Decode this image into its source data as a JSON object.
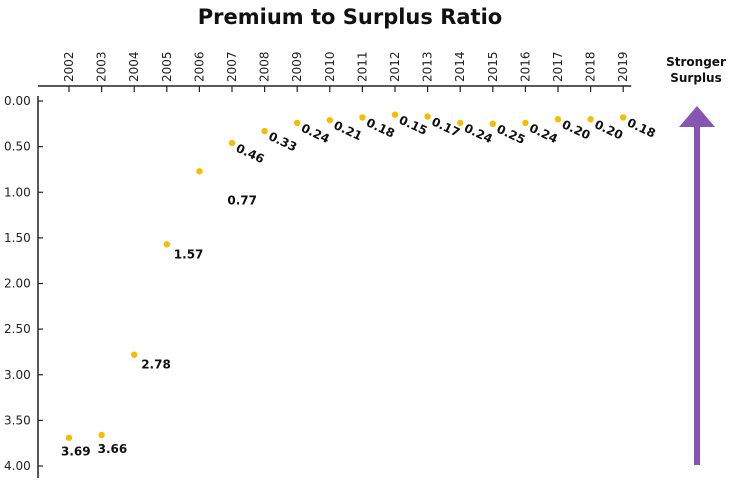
{
  "chart_data": {
    "type": "scatter",
    "title": "Premium to Surplus Ratio",
    "x": [
      "2002",
      "2003",
      "2004",
      "2005",
      "2006",
      "2007",
      "2008",
      "2009",
      "2010",
      "2011",
      "2012",
      "2013",
      "2014",
      "2015",
      "2016",
      "2017",
      "2018",
      "2019"
    ],
    "values": [
      3.69,
      3.66,
      2.78,
      1.57,
      0.77,
      0.46,
      0.33,
      0.24,
      0.21,
      0.18,
      0.15,
      0.17,
      0.24,
      0.25,
      0.24,
      0.2,
      0.2,
      0.18
    ],
    "value_labels": [
      "3.69",
      "3.66",
      "2.78",
      "1.57",
      "0.77",
      "0.46",
      "0.33",
      "0.24",
      "0.21",
      "0.18",
      "0.15",
      "0.17",
      "0.24",
      "0.25",
      "0.24",
      "0.20",
      "0.20",
      "0.18"
    ],
    "y_ticks": [
      "0.00",
      "0.50",
      "1.00",
      "1.50",
      "2.00",
      "2.50",
      "3.00",
      "3.50",
      "4.00"
    ],
    "ylim": [
      0,
      4
    ],
    "y_inverted": true,
    "x_axis_position": "top",
    "grid": false,
    "colors": {
      "points": "#F5BC00",
      "arrow": "#8755B3",
      "axis": "#222222"
    },
    "annotation": {
      "line1": "Stronger",
      "line2": "Surplus",
      "arrow_direction": "up"
    }
  }
}
